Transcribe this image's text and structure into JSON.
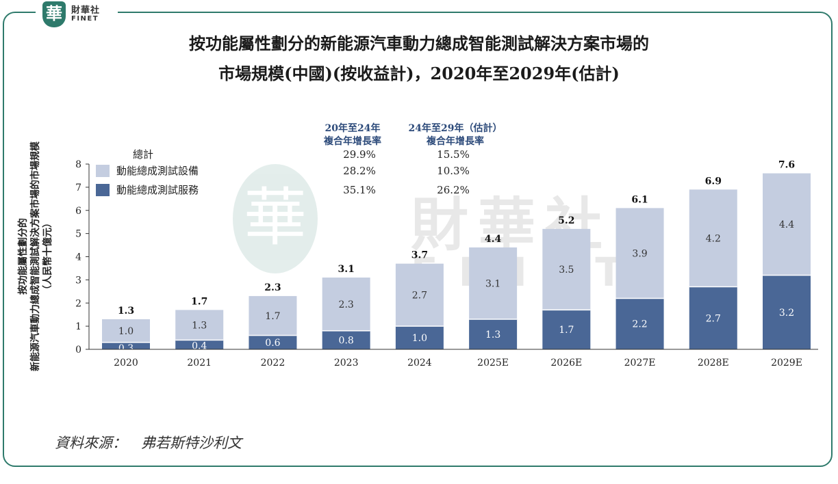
{
  "header": {
    "logo_mark": "華",
    "logo_cn": "財華社",
    "logo_en": "FINET"
  },
  "title_line1": "按功能屬性劃分的新能源汽車動力總成智能測試解決方案市場的",
  "title_line2": "市場規模(中國)(按收益計)，2020年至2029年(估計)",
  "source": "資料來源：　弗若斯特沙利文",
  "watermark": {
    "mark": "華",
    "cn": "財華社",
    "en": "FINET"
  },
  "chart_data": {
    "type": "bar",
    "stacked": true,
    "ylabel_lines": [
      "按功能屬性劃分的",
      "新能源汽車動力總成智能測試解決方案市場的市場規模",
      "（人民幣十億元）"
    ],
    "ylim": [
      0,
      8
    ],
    "yticks": [
      "0",
      "1",
      "2",
      "3",
      "4",
      "5",
      "6",
      "7",
      "8"
    ],
    "categories": [
      "2020",
      "2021",
      "2022",
      "2023",
      "2024",
      "2025E",
      "2026E",
      "2027E",
      "2028E",
      "2029E"
    ],
    "series": [
      {
        "name": "動能總成測試服務",
        "color": "#4a6796",
        "values": [
          0.3,
          0.4,
          0.6,
          0.8,
          1.0,
          1.3,
          1.7,
          2.2,
          2.7,
          3.2
        ],
        "labels": [
          "0.3",
          "0.4",
          "0.6",
          "0.8",
          "1.0",
          "1.3",
          "1.7",
          "2.2",
          "2.7",
          "3.2"
        ]
      },
      {
        "name": "動能總成測試設備",
        "color": "#c4cde0",
        "values": [
          1.0,
          1.3,
          1.7,
          2.3,
          2.7,
          3.1,
          3.5,
          3.9,
          4.2,
          4.4
        ],
        "labels": [
          "1.0",
          "1.3",
          "1.7",
          "2.3",
          "2.7",
          "3.1",
          "3.5",
          "3.9",
          "4.2",
          "4.4"
        ]
      }
    ],
    "totals": [
      1.3,
      1.7,
      2.3,
      3.1,
      3.7,
      4.4,
      5.2,
      6.1,
      6.9,
      7.6
    ],
    "total_labels": [
      "1.3",
      "1.7",
      "2.3",
      "3.1",
      "3.7",
      "4.4",
      "5.2",
      "6.1",
      "6.9",
      "7.6"
    ],
    "legend": {
      "total_label": "總計",
      "items": [
        "動能總成測試設備",
        "動能總成測試服務"
      ]
    },
    "cagr": {
      "col1_header": [
        "20年至24年",
        "複合年增長率"
      ],
      "col2_header": [
        "24年至29年（估計）",
        "複合年增長率"
      ],
      "rows": [
        {
          "label": "總計",
          "c1": "29.9%",
          "c2": "15.5%"
        },
        {
          "label": "動能總成測試設備",
          "c1": "28.2%",
          "c2": "10.3%"
        },
        {
          "label": "動能總成測試服務",
          "c1": "35.1%",
          "c2": "26.2%"
        }
      ]
    }
  }
}
